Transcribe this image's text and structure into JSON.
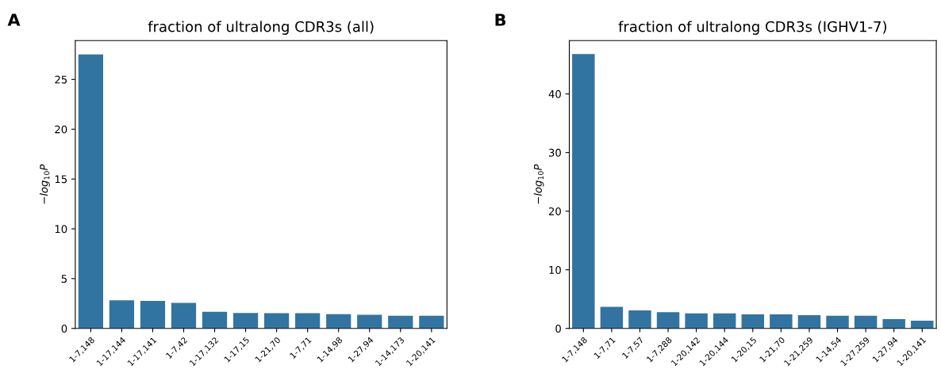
{
  "chart_data": [
    {
      "type": "bar",
      "title": "fraction of ultralong CDR3s (all)",
      "ylabel": "−log$_{10}$P",
      "annotations": [
        "A"
      ],
      "categories": [
        "1-7,148",
        "1-17,144",
        "1-17,141",
        "1-7,42",
        "1-17,132",
        "1-17,15",
        "1-21,70",
        "1-7,71",
        "1-14,98",
        "1-27,94",
        "1-14,173",
        "1-20,141"
      ],
      "values": [
        27.5,
        2.83,
        2.77,
        2.56,
        1.67,
        1.55,
        1.52,
        1.52,
        1.43,
        1.37,
        1.28,
        1.28
      ],
      "color": "#3274a1",
      "ylim": [
        0,
        28.9
      ],
      "yticks": [
        0,
        5,
        10,
        15,
        20,
        25
      ],
      "grid": false
    },
    {
      "type": "bar",
      "title": "fraction of ultralong CDR3s (IGHV1-7)",
      "ylabel": "−log$_{10}$P",
      "annotations": [
        "B"
      ],
      "categories": [
        "1-7,148",
        "1-7,71",
        "1-7,57",
        "1-7,288",
        "1-20,142",
        "1-20,144",
        "1-20,15",
        "1-21,70",
        "1-21,259",
        "1-14,54",
        "1-27,259",
        "1-27,94",
        "1-20,141"
      ],
      "values": [
        46.8,
        3.68,
        3.07,
        2.76,
        2.55,
        2.55,
        2.4,
        2.4,
        2.25,
        2.15,
        2.15,
        1.58,
        1.33
      ],
      "color": "#3274a1",
      "ylim": [
        0,
        49.1
      ],
      "yticks": [
        0,
        10,
        20,
        30,
        40
      ],
      "grid": false
    }
  ]
}
